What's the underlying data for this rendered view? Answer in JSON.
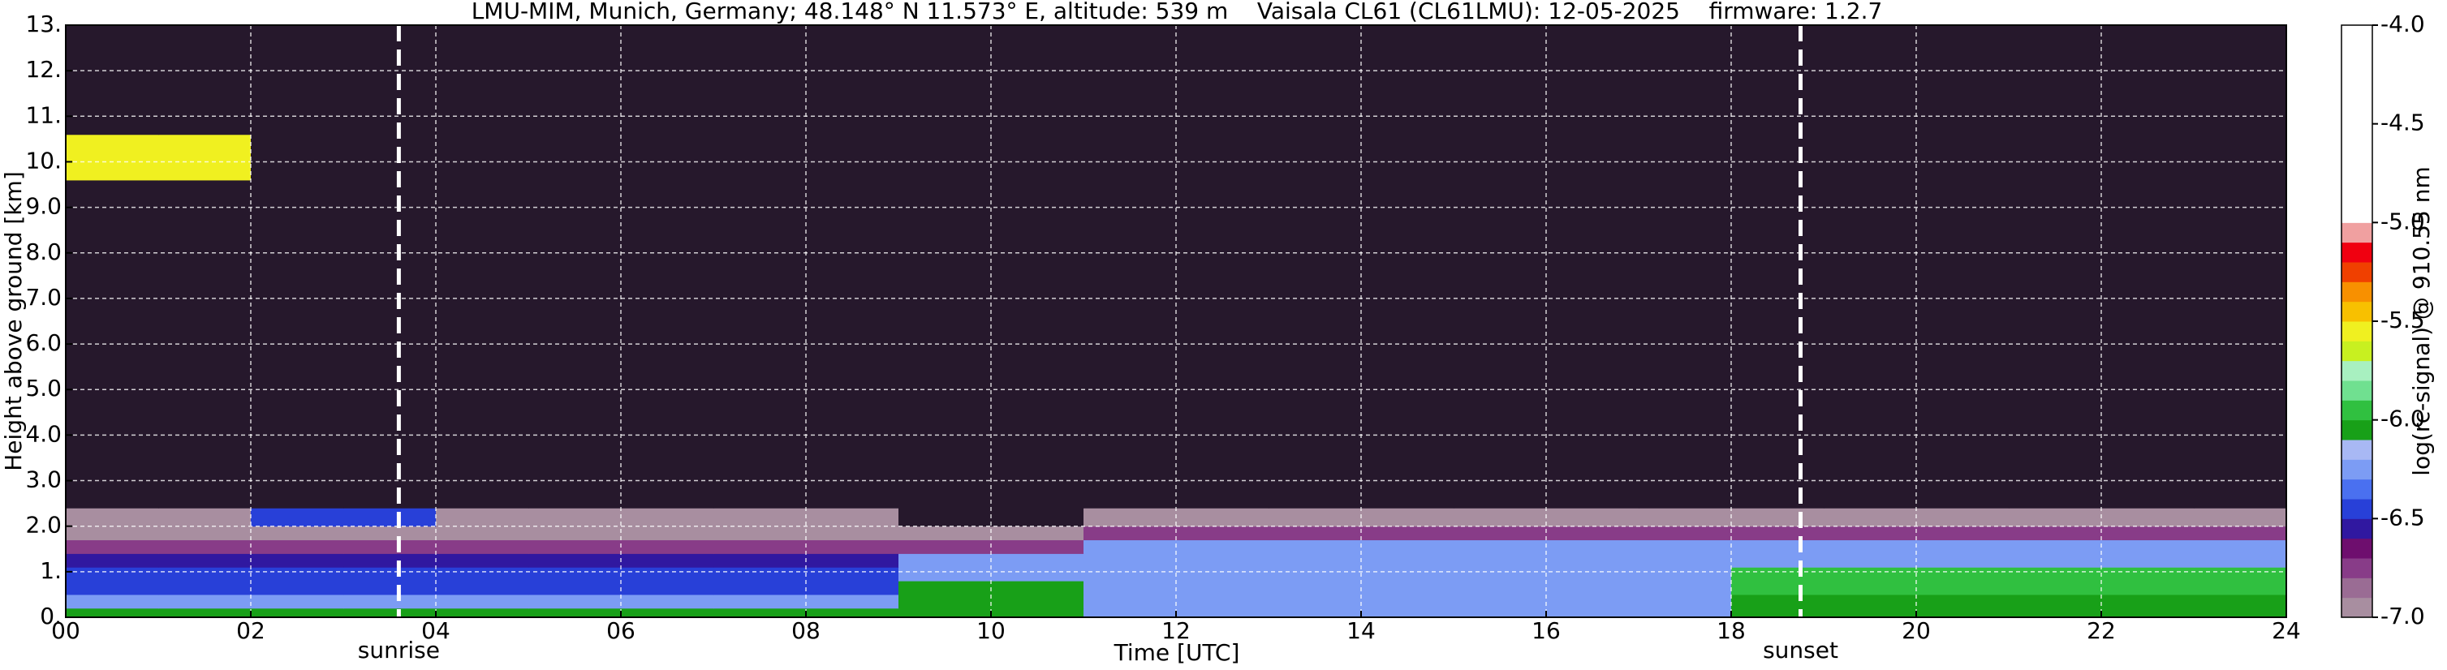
{
  "chart_data": {
    "type": "heatmap",
    "title": "LMU-MIM, Munich, Germany; 48.148° N 11.573° E, altitude: 539 m    Vaisala CL61 (CL61LMU): 12-05-2025    firmware: 1.2.7",
    "x_label": "Time [UTC]",
    "y_label": "Height above ground [km]",
    "xlim": [
      0,
      24
    ],
    "xticks": [
      {
        "value": 0,
        "label": "00"
      },
      {
        "value": 2,
        "label": "02"
      },
      {
        "value": 4,
        "label": "04"
      },
      {
        "value": 6,
        "label": "06"
      },
      {
        "value": 8,
        "label": "08"
      },
      10,
      12,
      14,
      16,
      18,
      20,
      22,
      24
    ],
    "ylim": [
      0,
      13
    ],
    "yticks": [
      {
        "value": 0,
        "label": "0."
      },
      {
        "value": 1,
        "label": "1."
      },
      {
        "value": 2,
        "label": "2.0"
      },
      {
        "value": 3,
        "label": "3.0"
      },
      {
        "value": 4,
        "label": "4.0"
      },
      {
        "value": 5,
        "label": "5.0"
      },
      {
        "value": 6,
        "label": "6.0"
      },
      {
        "value": 7,
        "label": "7.0"
      },
      {
        "value": 8,
        "label": "8.0"
      },
      {
        "value": 9,
        "label": "9.0"
      },
      {
        "value": 10,
        "label": "10."
      },
      {
        "value": 11,
        "label": "11."
      },
      {
        "value": 12,
        "label": "12."
      },
      {
        "value": 13,
        "label": "13."
      }
    ],
    "grid": true,
    "x_edges": [
      0,
      1,
      2,
      3,
      4,
      5,
      6,
      7,
      8,
      9,
      10,
      11,
      12,
      13,
      14,
      15,
      16,
      17,
      18,
      19,
      20,
      21,
      22,
      23,
      24
    ],
    "y_edges": [
      0,
      0.2,
      0.5,
      0.8,
      1.1,
      1.4,
      1.7,
      2.0,
      2.4,
      3.0,
      9.6,
      10.6,
      13
    ],
    "z": [
      [
        -6.05,
        -6.05,
        -6.05,
        -6.05,
        -6.05,
        -6.05,
        -6.05,
        -6.05,
        -6.05,
        -6.1,
        -6.1,
        -6.2,
        -6.2,
        -6.2,
        -6.2,
        -6.2,
        -6.2,
        -6.2,
        -6.1,
        -6.1,
        -6.1,
        -6.1,
        -6.1,
        -6.1
      ],
      [
        -6.3,
        -6.3,
        -6.3,
        -6.3,
        -6.3,
        -6.3,
        -6.3,
        -6.3,
        -6.3,
        -6.1,
        -6.1,
        -6.2,
        -6.2,
        -6.2,
        -6.2,
        -6.2,
        -6.2,
        -6.2,
        -6.1,
        -6.1,
        -6.1,
        -6.1,
        -6.1,
        -6.1
      ],
      [
        -6.5,
        -6.5,
        -6.5,
        -6.5,
        -6.5,
        -6.5,
        -6.5,
        -6.5,
        -6.5,
        -6.1,
        -6.1,
        -6.3,
        -6.3,
        -6.3,
        -6.3,
        -6.3,
        -6.3,
        -6.3,
        -6.0,
        -6.0,
        -6.0,
        -6.0,
        -6.0,
        -6.0
      ],
      [
        -6.5,
        -6.5,
        -6.5,
        -6.5,
        -6.5,
        -6.5,
        -6.5,
        -6.5,
        -6.5,
        -6.2,
        -6.2,
        -6.3,
        -6.3,
        -6.3,
        -6.3,
        -6.3,
        -6.3,
        -6.3,
        -6.0,
        -6.0,
        -6.0,
        -6.0,
        -6.0,
        -6.0
      ],
      [
        -6.6,
        -6.6,
        -6.6,
        -6.6,
        -6.6,
        -6.6,
        -6.6,
        -6.6,
        -6.6,
        -6.3,
        -6.3,
        -6.3,
        -6.3,
        -6.3,
        -6.3,
        -6.3,
        -6.3,
        -6.3,
        -6.2,
        -6.2,
        -6.2,
        -6.2,
        -6.2,
        -6.2
      ],
      [
        -6.8,
        -6.8,
        -6.8,
        -6.8,
        -6.8,
        -6.8,
        -6.8,
        -6.8,
        -6.8,
        -6.8,
        -6.8,
        -6.3,
        -6.3,
        -6.3,
        -6.3,
        -6.3,
        -6.3,
        -6.3,
        -6.3,
        -6.3,
        -6.3,
        -6.3,
        -6.3,
        -6.3
      ],
      [
        -6.9,
        -6.9,
        -6.9,
        -6.9,
        -6.9,
        -6.9,
        -6.9,
        -6.9,
        -6.9,
        -7.0,
        -7.0,
        -6.7,
        -6.7,
        -6.7,
        -6.7,
        -6.7,
        -6.7,
        -6.7,
        -6.7,
        -6.7,
        -6.7,
        -6.7,
        -6.7,
        -6.7
      ],
      [
        -7.0,
        -7.0,
        -6.4,
        -6.4,
        -7.0,
        -7.0,
        -7.0,
        -7.0,
        -7.0,
        -7.2,
        -7.2,
        -7.0,
        -7.0,
        -7.0,
        -7.0,
        -7.0,
        -7.0,
        -7.0,
        -7.0,
        -7.0,
        -7.0,
        -7.0,
        -7.0,
        -7.0
      ],
      [
        -7.2,
        -7.2,
        -7.2,
        -7.2,
        -7.2,
        -7.2,
        -7.2,
        -7.2,
        -7.2,
        -7.3,
        -7.3,
        -7.3,
        -7.3,
        -7.3,
        -7.3,
        -7.3,
        -7.3,
        -7.3,
        -7.3,
        -7.3,
        -7.3,
        -7.3,
        -7.3,
        -7.3
      ],
      [
        -7.5,
        -7.5,
        -7.5,
        -7.5,
        -7.5,
        -7.5,
        -7.5,
        -7.5,
        -7.5,
        -7.5,
        -7.5,
        -7.5,
        -7.5,
        -7.5,
        -7.5,
        -7.5,
        -7.5,
        -7.5,
        -7.5,
        -7.5,
        -7.5,
        -7.5,
        -7.5,
        -7.5
      ],
      [
        -5.6,
        -5.6,
        -7.5,
        -7.5,
        -7.5,
        -7.5,
        -7.5,
        -7.5,
        -7.5,
        -7.5,
        -7.5,
        -7.5,
        -7.5,
        -7.5,
        -7.5,
        -7.5,
        -7.5,
        -7.5,
        -7.5,
        -7.5,
        -7.5,
        -7.5,
        -7.5,
        -7.5
      ],
      [
        -7.5,
        -7.5,
        -7.5,
        -7.5,
        -7.5,
        -7.5,
        -7.5,
        -7.5,
        -7.5,
        -7.5,
        -7.5,
        -7.5,
        -7.5,
        -7.5,
        -7.5,
        -7.5,
        -7.5,
        -7.5,
        -7.5,
        -7.5,
        -7.5,
        -7.5,
        -7.5,
        -7.5
      ]
    ],
    "under_color": "#26182c",
    "colormap": [
      "#a88ea0",
      "#9a6c94",
      "#883c88",
      "#6e0e6e",
      "#3018a0",
      "#2840d8",
      "#4a70f0",
      "#7c9cf4",
      "#a8b8f4",
      "#18a018",
      "#30c040",
      "#70e090",
      "#a8f0c0",
      "#c8f020",
      "#f0f020",
      "#f8c000",
      "#f89000",
      "#f04000",
      "#f00010",
      "#f0a0a0",
      "#ffffff",
      "#ffffff",
      "#ffffff",
      "#ffffff",
      "#ffffff",
      "#ffffff",
      "#ffffff",
      "#ffffff",
      "#ffffff",
      "#ffffff"
    ],
    "colorbar": {
      "label": "log(rc-signal) @ 910.55 nm",
      "ylim": [
        -7.0,
        -4.0
      ],
      "yticks": [
        {
          "value": -7.0,
          "label": "-7.0"
        },
        {
          "value": -6.5,
          "label": "-6.5"
        },
        {
          "value": -6.0,
          "label": "-6.0"
        },
        {
          "value": -5.5,
          "label": "-5.5"
        },
        {
          "value": -5.0,
          "label": "-5.0"
        },
        {
          "value": -4.5,
          "label": "-4.5"
        },
        {
          "value": -4.0,
          "label": "-4.0"
        }
      ]
    },
    "annotations": [
      {
        "text": "sunrise",
        "x": 3.6
      },
      {
        "text": "sunset",
        "x": 18.75
      }
    ]
  }
}
